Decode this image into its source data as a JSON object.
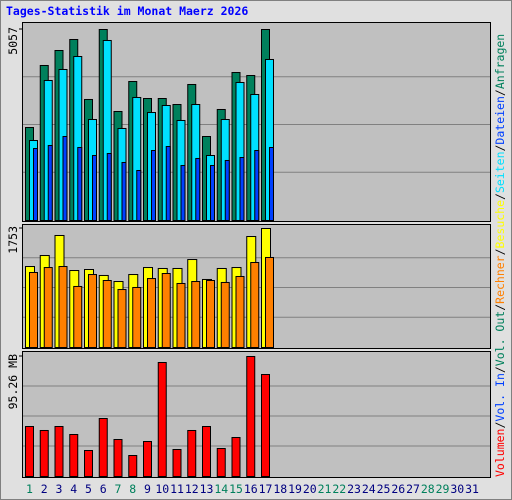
{
  "title": "Tages-Statistik im Monat Maerz 2026",
  "legend_separator": "/",
  "chart_data": [
    {
      "type": "bar",
      "ylim": [
        0,
        5057
      ],
      "yticks": [
        5057
      ],
      "grid": true,
      "series": [
        {
          "name": "Anfragen",
          "color": "#00805c",
          "values": [
            2462,
            4104,
            4501,
            4792,
            3204,
            5057,
            2886,
            3680,
            3230,
            3230,
            3071,
            3601,
            2224,
            2939,
            3918,
            3839,
            5057,
            null,
            null,
            null,
            null,
            null,
            null,
            null,
            null,
            null,
            null,
            null,
            null,
            null,
            null
          ]
        },
        {
          "name": "Dateien",
          "color": "#0040ff",
          "values": [
            1906,
            1986,
            2224,
            1933,
            1721,
            1774,
            1536,
            1324,
            1853,
            1959,
            1456,
            1642,
            1456,
            1589,
            1668,
            1853,
            1933,
            null,
            null,
            null,
            null,
            null,
            null,
            null,
            null,
            null,
            null,
            null,
            null,
            null,
            null
          ]
        },
        {
          "name": "Seiten",
          "color": "#00e0ff",
          "values": [
            2118,
            3707,
            3998,
            4342,
            2674,
            4766,
            2436,
            3257,
            2859,
            3045,
            2648,
            3071,
            1721,
            2674,
            3654,
            3336,
            4263,
            null,
            null,
            null,
            null,
            null,
            null,
            null,
            null,
            null,
            null,
            null,
            null,
            null,
            null
          ]
        }
      ]
    },
    {
      "type": "bar",
      "ylim": [
        0,
        1753
      ],
      "yticks": [
        1753
      ],
      "grid": true,
      "series": [
        {
          "name": "Besuche",
          "color": "#ffff00",
          "values": [
            1193,
            1355,
            1650,
            1134,
            1149,
            1061,
            972,
            1075,
            1178,
            1164,
            1164,
            1296,
            1002,
            1164,
            1178,
            1635,
            1753,
            null,
            null,
            null,
            null,
            null,
            null,
            null,
            null,
            null,
            null,
            null,
            null,
            null,
            null
          ]
        },
        {
          "name": "Rechner",
          "color": "#ff8000",
          "values": [
            1105,
            1178,
            1193,
            899,
            1075,
            987,
            854,
            884,
            1016,
            1090,
            943,
            972,
            987,
            958,
            1046,
            1252,
            1326,
            null,
            null,
            null,
            null,
            null,
            null,
            null,
            null,
            null,
            null,
            null,
            null,
            null,
            null
          ]
        }
      ]
    },
    {
      "type": "bar",
      "ylim": [
        0,
        95.26
      ],
      "yticks": [
        {
          "value": 95.26,
          "label": "95.26 MB"
        }
      ],
      "grid": true,
      "categories": [
        "1",
        "2",
        "3",
        "4",
        "5",
        "6",
        "7",
        "8",
        "9",
        "10",
        "11",
        "12",
        "13",
        "14",
        "15",
        "16",
        "17",
        "18",
        "19",
        "20",
        "21",
        "22",
        "23",
        "24",
        "25",
        "26",
        "27",
        "28",
        "29",
        "30",
        "31"
      ],
      "category_colors": [
        "#00805c",
        "#000080",
        "#000080",
        "#000080",
        "#000080",
        "#000080",
        "#00805c",
        "#00805c",
        "#000080",
        "#000080",
        "#000080",
        "#000080",
        "#000080",
        "#00805c",
        "#00805c",
        "#000080",
        "#000080",
        "#000080",
        "#000080",
        "#000080",
        "#00805c",
        "#00805c",
        "#000080",
        "#000080",
        "#000080",
        "#000080",
        "#000080",
        "#00805c",
        "#00805c",
        "#000080",
        "#000080"
      ],
      "series": [
        {
          "name": "Vol. Out",
          "color": "#00805c",
          "values": [
            null,
            null,
            null,
            null,
            null,
            null,
            null,
            null,
            null,
            null,
            null,
            null,
            null,
            null,
            null,
            null,
            null,
            null,
            null,
            null,
            null,
            null,
            null,
            null,
            null,
            null,
            null,
            null,
            null,
            null,
            null
          ]
        },
        {
          "name": "Vol. In",
          "color": "#0040ff",
          "values": [
            null,
            null,
            null,
            null,
            null,
            null,
            null,
            null,
            null,
            null,
            null,
            null,
            null,
            null,
            null,
            null,
            null,
            null,
            null,
            null,
            null,
            null,
            null,
            null,
            null,
            null,
            null,
            null,
            null,
            null,
            null
          ]
        },
        {
          "name": "Volumen",
          "color": "#ff0000",
          "values": [
            39.69,
            36.52,
            39.69,
            33.34,
            20.64,
            46.04,
            29.37,
            16.67,
            27.78,
            90.5,
            21.43,
            36.52,
            39.69,
            22.23,
            30.96,
            95.26,
            80.97,
            null,
            null,
            null,
            null,
            null,
            null,
            null,
            null,
            null,
            null,
            null,
            null,
            null,
            null
          ]
        }
      ]
    }
  ]
}
